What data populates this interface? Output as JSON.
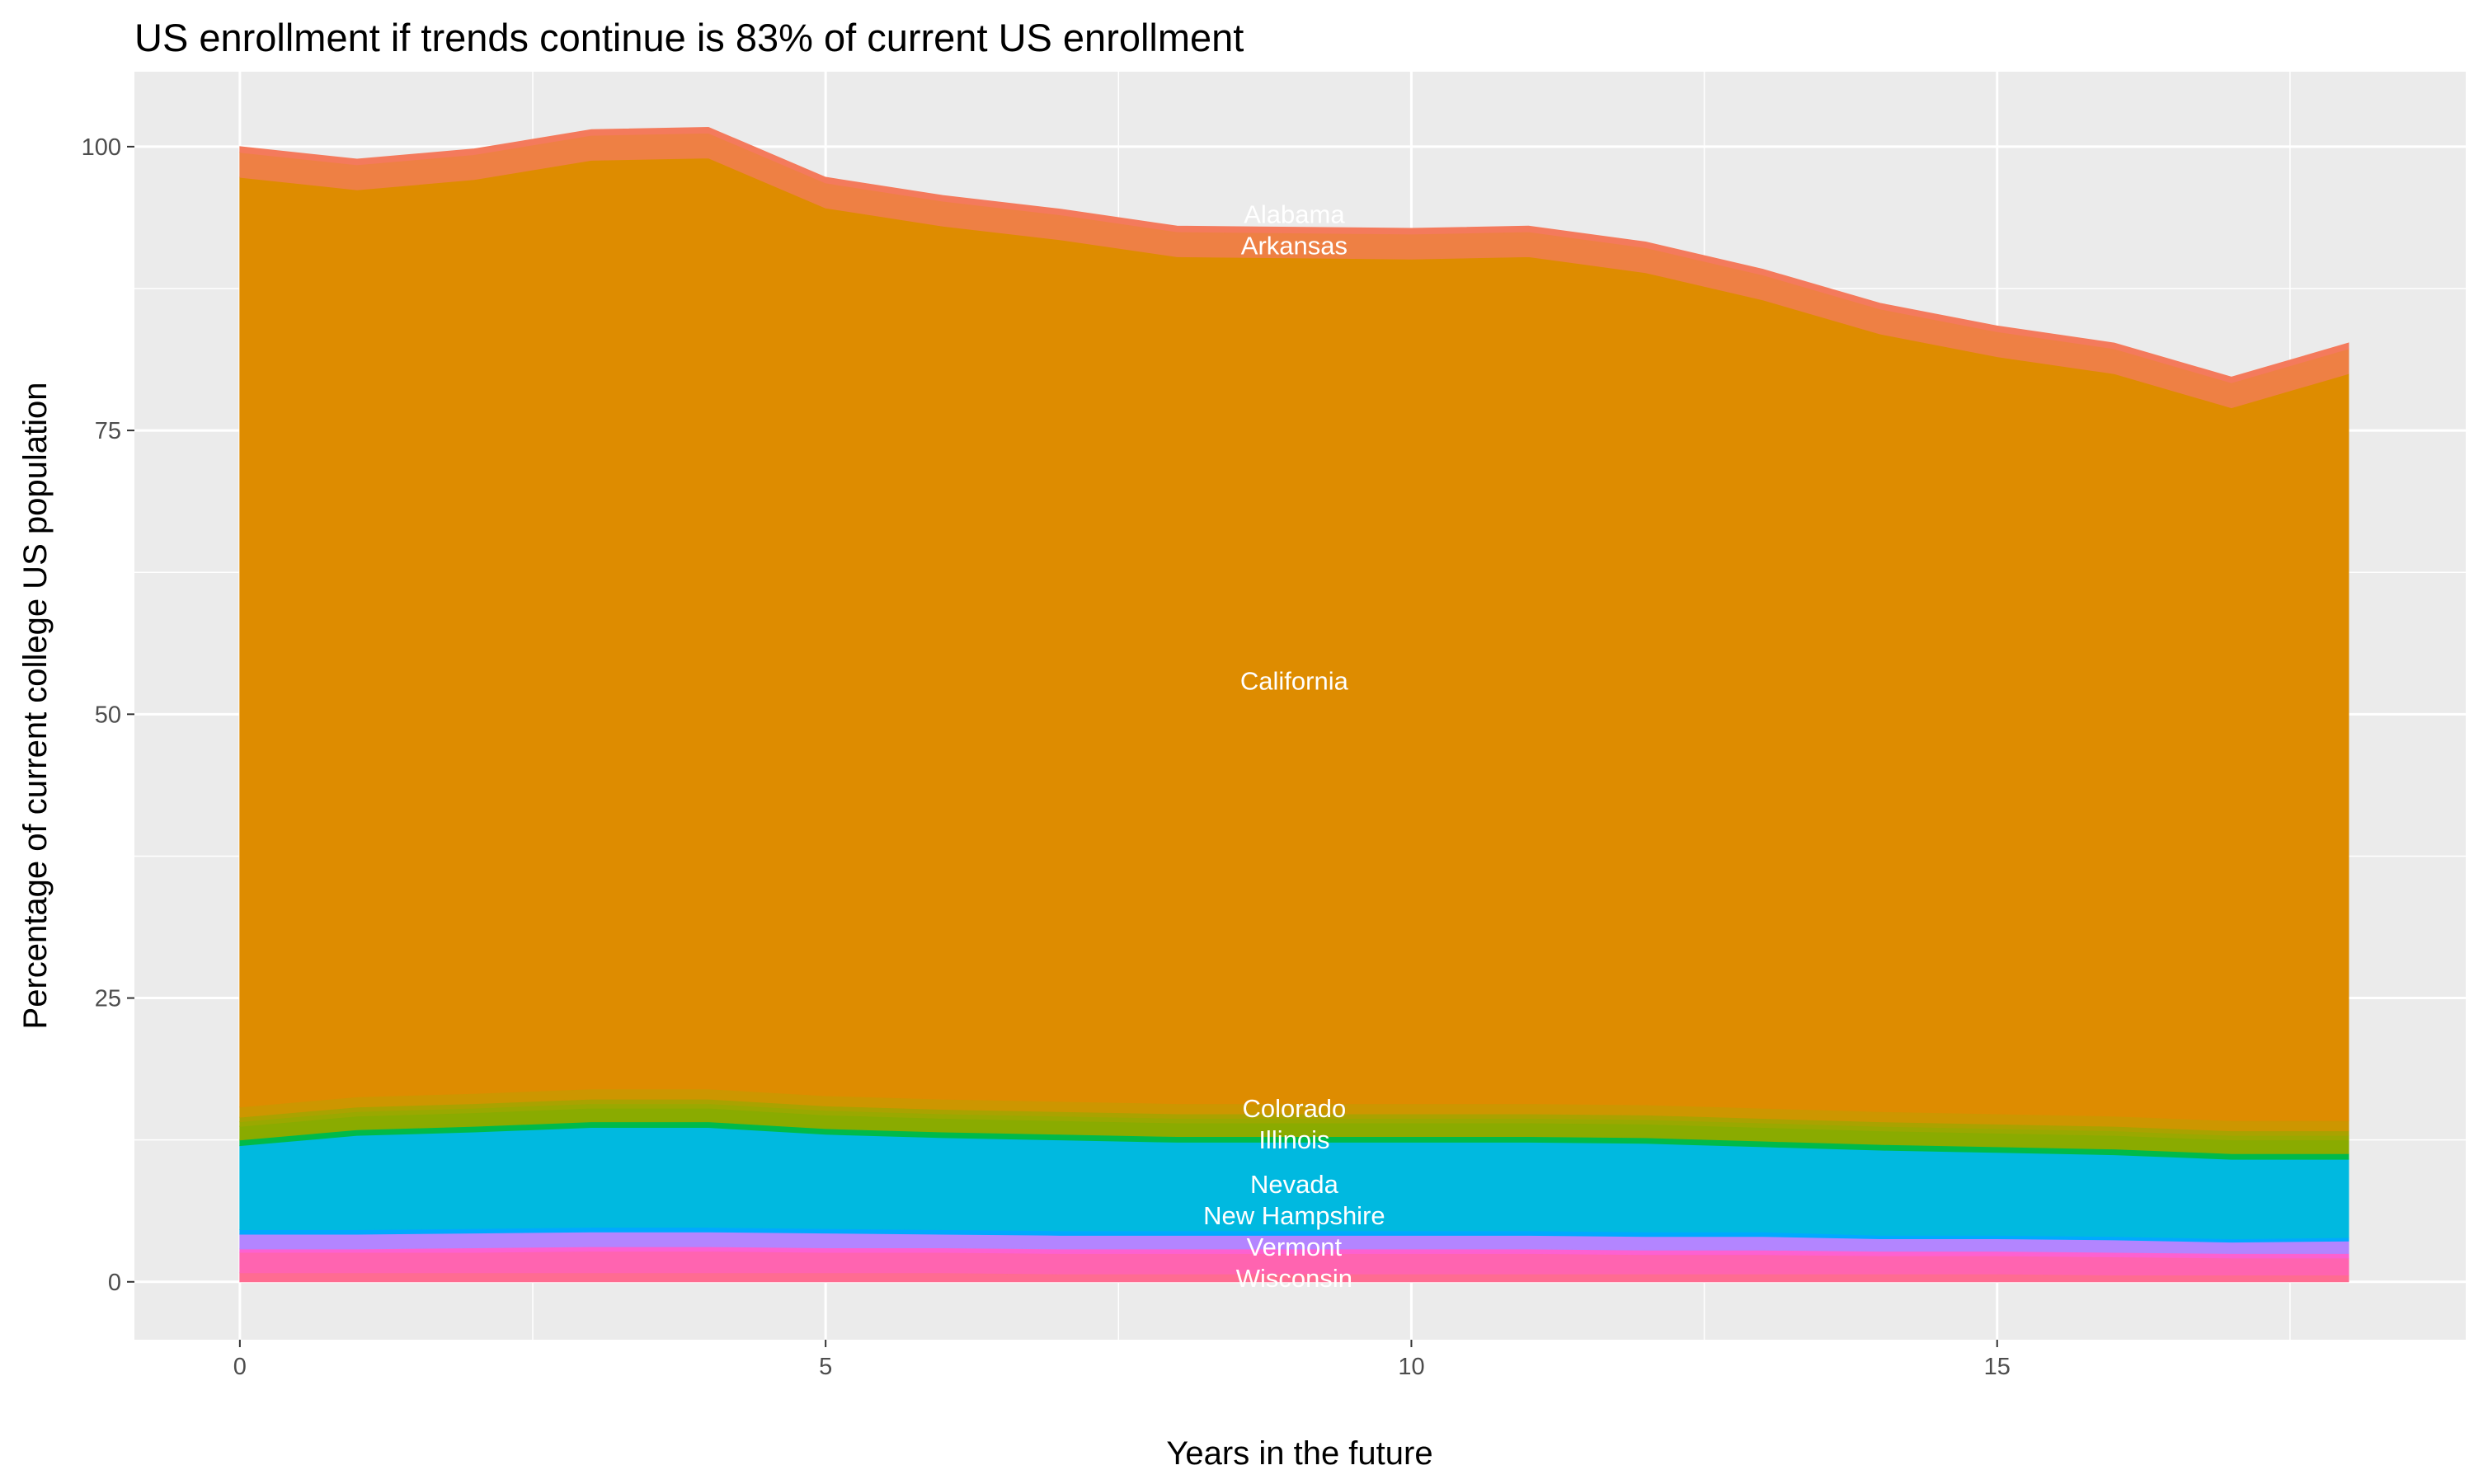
{
  "chart_data": {
    "type": "area",
    "stacked": true,
    "title": "US enrollment if trends continue is 83% of current US enrollment",
    "xlabel": "Years in the future",
    "ylabel": "Percentage of current college US population",
    "xlim": [
      -0.9,
      19.0
    ],
    "ylim": [
      -5.1,
      106.6
    ],
    "xticks": [
      0,
      5,
      10,
      15
    ],
    "yticks": [
      0,
      25,
      50,
      75,
      100
    ],
    "grid": true,
    "legend": "none",
    "label_x": 9,
    "x": [
      0,
      1,
      2,
      3,
      4,
      5,
      6,
      7,
      8,
      9,
      10,
      11,
      12,
      13,
      14,
      15,
      16,
      17,
      18
    ],
    "series": [
      {
        "name": "Wisconsin",
        "color": "#FF6C91",
        "label": true,
        "values": [
          0.8,
          0.8,
          0.8,
          0.8,
          0.8,
          0.8,
          0.8,
          0.7,
          0.7,
          0.7,
          0.7,
          0.7,
          0.7,
          0.7,
          0.7,
          0.7,
          0.6,
          0.6,
          0.6
        ]
      },
      {
        "name": "",
        "color": "#FF64B0",
        "label": false,
        "values": [
          1.8,
          1.8,
          1.8,
          1.9,
          1.9,
          1.8,
          1.8,
          1.8,
          1.8,
          1.8,
          1.8,
          1.8,
          1.7,
          1.7,
          1.6,
          1.6,
          1.6,
          1.5,
          1.5
        ]
      },
      {
        "name": "Vermont",
        "color": "#FD61D1",
        "label": true,
        "values": [
          0.3,
          0.3,
          0.4,
          0.4,
          0.4,
          0.4,
          0.4,
          0.4,
          0.4,
          0.4,
          0.4,
          0.4,
          0.4,
          0.4,
          0.4,
          0.4,
          0.4,
          0.4,
          0.4
        ]
      },
      {
        "name": "",
        "color": "#B385FF",
        "label": false,
        "values": [
          1.3,
          1.3,
          1.3,
          1.3,
          1.3,
          1.3,
          1.2,
          1.2,
          1.2,
          1.2,
          1.2,
          1.2,
          1.2,
          1.2,
          1.1,
          1.1,
          1.1,
          1.0,
          1.1
        ]
      },
      {
        "name": "New Hampshire",
        "color": "#00A9FF",
        "label": true,
        "values": [
          0.4,
          0.4,
          0.4,
          0.4,
          0.4,
          0.4,
          0.4,
          0.4,
          0.4,
          0.4,
          0.4,
          0.4,
          0.4,
          0.4,
          0.3,
          0.3,
          0.3,
          0.3,
          0.3
        ]
      },
      {
        "name": "Nevada",
        "color": "#00B9E0",
        "label": true,
        "values": [
          7.4,
          8.3,
          8.5,
          8.8,
          8.8,
          8.3,
          8.1,
          8.0,
          7.8,
          7.8,
          7.8,
          7.8,
          7.8,
          7.5,
          7.5,
          7.3,
          7.2,
          7.0,
          6.9
        ]
      },
      {
        "name": "Illinois",
        "color": "#00BA4A",
        "label": true,
        "values": [
          0.5,
          0.5,
          0.5,
          0.5,
          0.5,
          0.5,
          0.5,
          0.5,
          0.5,
          0.5,
          0.5,
          0.5,
          0.5,
          0.5,
          0.5,
          0.5,
          0.5,
          0.5,
          0.5
        ]
      },
      {
        "name": "",
        "color": "#8AAB00",
        "label": false,
        "values": [
          1.2,
          1.2,
          1.2,
          1.2,
          1.2,
          1.2,
          1.2,
          1.2,
          1.2,
          1.2,
          1.2,
          1.2,
          1.2,
          1.2,
          1.2,
          1.2,
          1.2,
          1.2,
          1.2
        ]
      },
      {
        "name": "Colorado",
        "color": "#9AA800",
        "label": true,
        "values": [
          0.4,
          0.4,
          0.4,
          0.4,
          0.4,
          0.4,
          0.4,
          0.4,
          0.4,
          0.4,
          0.4,
          0.4,
          0.4,
          0.4,
          0.4,
          0.4,
          0.4,
          0.4,
          0.4
        ]
      },
      {
        "name": "",
        "color": "#AAA200",
        "label": false,
        "values": [
          0.4,
          0.4,
          0.4,
          0.4,
          0.4,
          0.4,
          0.4,
          0.4,
          0.4,
          0.4,
          0.4,
          0.4,
          0.4,
          0.4,
          0.4,
          0.4,
          0.4,
          0.4,
          0.4
        ]
      },
      {
        "name": "",
        "color": "#CD9600",
        "label": false,
        "values": [
          0.9,
          0.9,
          0.9,
          0.9,
          0.9,
          0.9,
          0.9,
          0.9,
          0.9,
          0.9,
          0.9,
          0.9,
          0.9,
          0.9,
          0.9,
          0.9,
          0.9,
          0.9,
          0.9
        ]
      },
      {
        "name": "California",
        "color": "#DE8C00",
        "label": true,
        "values": [
          81.9,
          79.9,
          80.5,
          81.8,
          82.0,
          78.2,
          76.9,
          75.9,
          74.6,
          74.5,
          74.4,
          74.6,
          73.3,
          71.2,
          68.5,
          66.7,
          65.4,
          62.8,
          65.8
        ]
      },
      {
        "name": "Arkansas",
        "color": "#EE8044",
        "label": true,
        "values": [
          2.2,
          2.2,
          2.2,
          2.2,
          2.2,
          2.2,
          2.2,
          2.2,
          2.2,
          2.2,
          2.2,
          2.2,
          2.2,
          2.2,
          2.2,
          2.2,
          2.2,
          2.2,
          2.2
        ]
      },
      {
        "name": "Alabama",
        "color": "#F47A5C",
        "label": true,
        "values": [
          0.5,
          0.5,
          0.5,
          0.5,
          0.5,
          0.5,
          0.5,
          0.5,
          0.5,
          0.5,
          0.5,
          0.5,
          0.5,
          0.5,
          0.5,
          0.5,
          0.5,
          0.5,
          0.5
        ]
      }
    ]
  }
}
